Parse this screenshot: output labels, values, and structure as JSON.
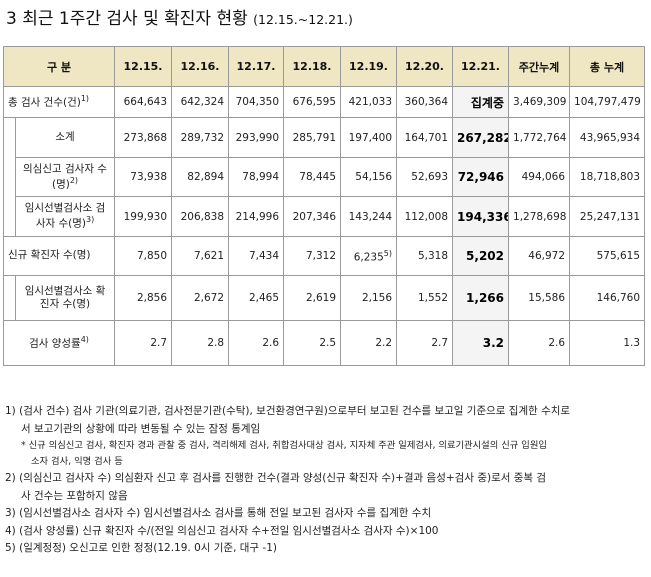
{
  "title": {
    "main": "3 최근 1주간 검사 및 확진자 현황",
    "period": "(12.15.~12.21.)"
  },
  "table": {
    "headers": [
      "구 분",
      "12.15.",
      "12.16.",
      "12.17.",
      "12.18.",
      "12.19.",
      "12.20.",
      "12.21.",
      "주간누계",
      "총 누계"
    ],
    "rows": [
      {
        "label": "총 검사 건수(건)",
        "sup": "1)",
        "values": [
          "664,643",
          "642,324",
          "704,350",
          "676,595",
          "421,033",
          "360,364",
          "집계중",
          "3,469,309",
          "104,797,479"
        ]
      },
      {
        "label": "소계",
        "values": [
          "273,868",
          "289,732",
          "293,990",
          "285,791",
          "197,400",
          "164,701",
          "267,282",
          "1,772,764",
          "43,965,934"
        ]
      },
      {
        "label": "의심신고 검사자 수(명)",
        "sup": "2)",
        "values": [
          "73,938",
          "82,894",
          "78,994",
          "78,445",
          "54,156",
          "52,693",
          "72,946",
          "494,066",
          "18,718,803"
        ]
      },
      {
        "label": "임시선별검사소 검사자 수(명)",
        "sup": "3)",
        "values": [
          "199,930",
          "206,838",
          "214,996",
          "207,346",
          "143,244",
          "112,008",
          "194,336",
          "1,278,698",
          "25,247,131"
        ]
      },
      {
        "label": "신규 확진자 수(명)",
        "values": [
          "7,850",
          "7,621",
          "7,434",
          "7,312",
          "6,235",
          "5,318",
          "5,202",
          "46,972",
          "575,615"
        ],
        "cell_sup": "5)"
      },
      {
        "label": "임시선별검사소 확진자 수(명)",
        "values": [
          "2,856",
          "2,672",
          "2,465",
          "2,619",
          "2,156",
          "1,552",
          "1,266",
          "15,586",
          "146,760"
        ]
      },
      {
        "label": "검사 양성률",
        "sup": "4)",
        "values": [
          "2.7",
          "2.8",
          "2.6",
          "2.5",
          "2.2",
          "2.7",
          "3.2",
          "2.6",
          "1.3"
        ]
      }
    ]
  },
  "notes": {
    "n1": "1) (검사 건수) 검사 기관(의료기관, 검사전문기관(수탁), 보건환경연구원)으로부터 보고된 건수를 보고일 기준으로 집계한 수치로",
    "n1b": "서 보고기관의 상황에 따라 변동될 수 있는 잠정 통계임",
    "star1": "* 신규 의심신고 검사, 확진자 경과 관찰 중 검사, 격리해제 검사, 취합검사대상 검사, 지자체 주관 일제검사, 의료기관시설의 신규 입원입",
    "star1b": "소자 검사, 익명 검사 등",
    "n2": "2) (의심신고 검사자 수) 의심환자 신고 후 검사를 진행한 건수(결과 양성(신규 확진자 수)+결과 음성+검사 중)로서 중복 검",
    "n2b": "사 건수는 포함하지 않음",
    "n3": "3) (임시선별검사소 검사자 수) 임시선별검사소 검사를 통해 전일 보고된 검사자 수를 집계한 수치",
    "n4": "4) (검사 양성률) 신규 확진자 수/(전일 의심신고 검사자 수+전일 임시선별검사소 검사자 수)×100",
    "n5": "5) (일계정정) 오신고로 인한 정정(12.19. 0시 기준, 대구 -1)"
  }
}
